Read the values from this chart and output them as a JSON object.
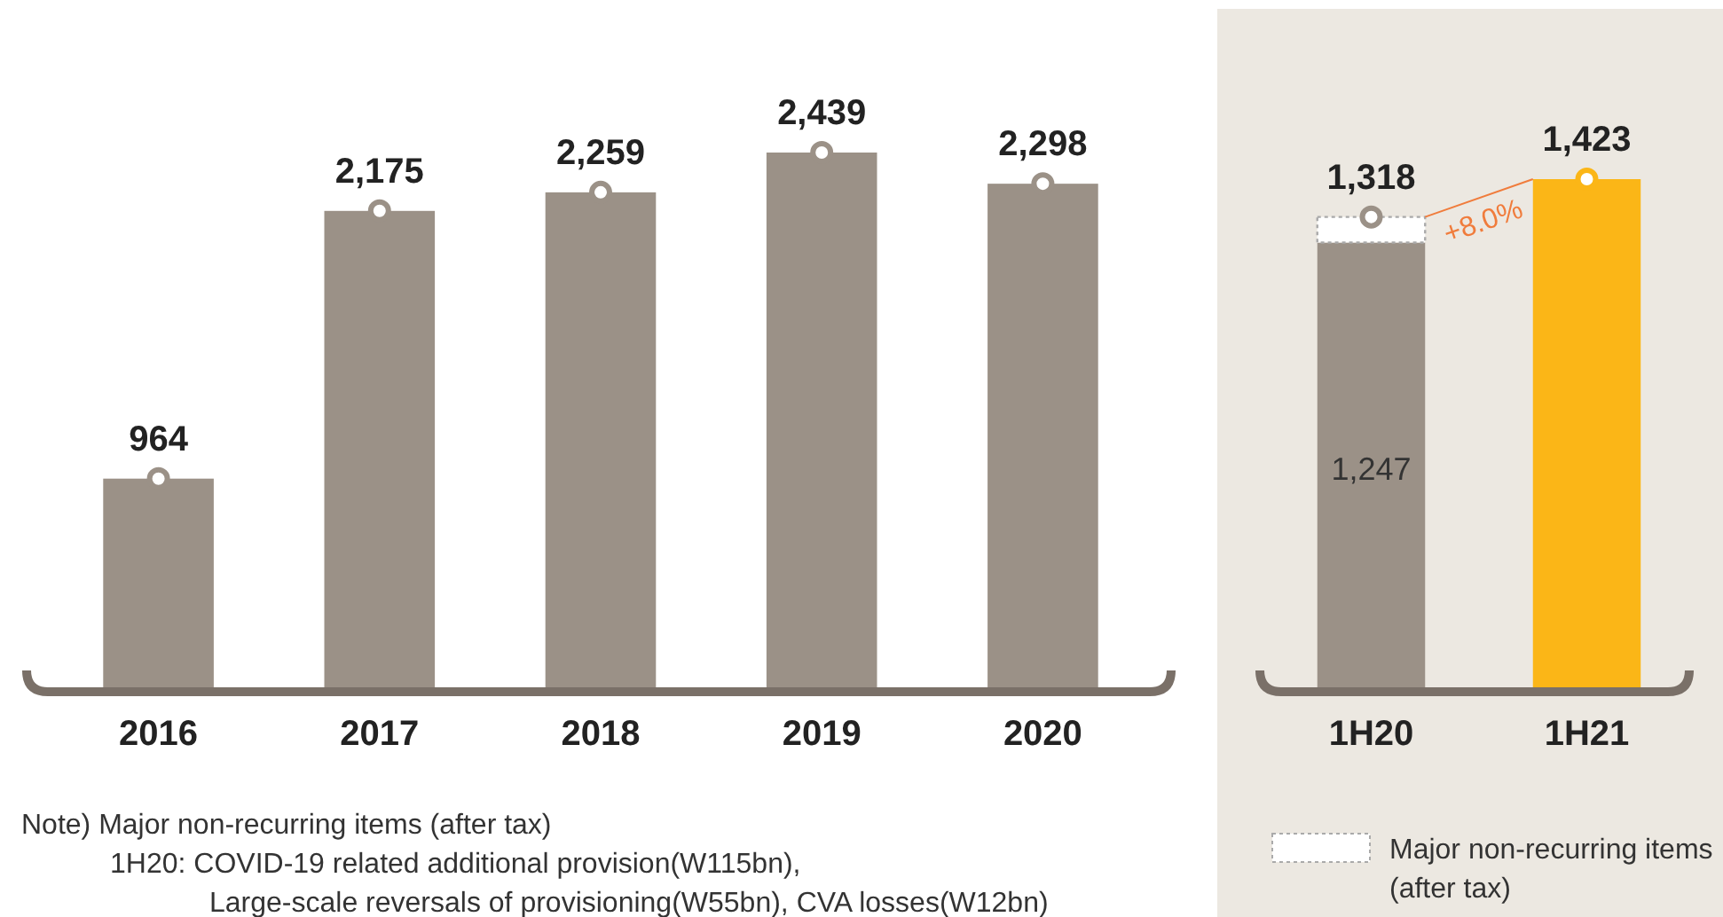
{
  "chart_data": [
    {
      "type": "bar",
      "categories": [
        "2016",
        "2017",
        "2018",
        "2019",
        "2020"
      ],
      "values": [
        964,
        2175,
        2259,
        2439,
        2298
      ],
      "color": "#9b9187",
      "value_labels": [
        "964",
        "2,175",
        "2,259",
        "2,439",
        "2,298"
      ],
      "annotations": [
        "Note) Major non-recurring items (after tax)",
        "1H20: COVID-19 related additional provision(W115bn),",
        "Large-scale reversals of provisioning(W55bn), CVA losses(W12bn)"
      ]
    },
    {
      "type": "bar",
      "stacked": true,
      "categories": [
        "1H20",
        "1H21"
      ],
      "legend": "bottom",
      "series": [
        {
          "colors": [
            "#9b9187",
            "#fbb617"
          ],
          "values": [
            1247,
            1423
          ],
          "value_labels": [
            "1,247",
            null
          ]
        },
        {
          "name": "Major non-recurring items (after tax)",
          "color": "#ffffff",
          "values": [
            71,
            null
          ]
        }
      ],
      "totals": [
        "1,318",
        "1,423"
      ],
      "annotations": [
        "+8.0%"
      ]
    }
  ]
}
